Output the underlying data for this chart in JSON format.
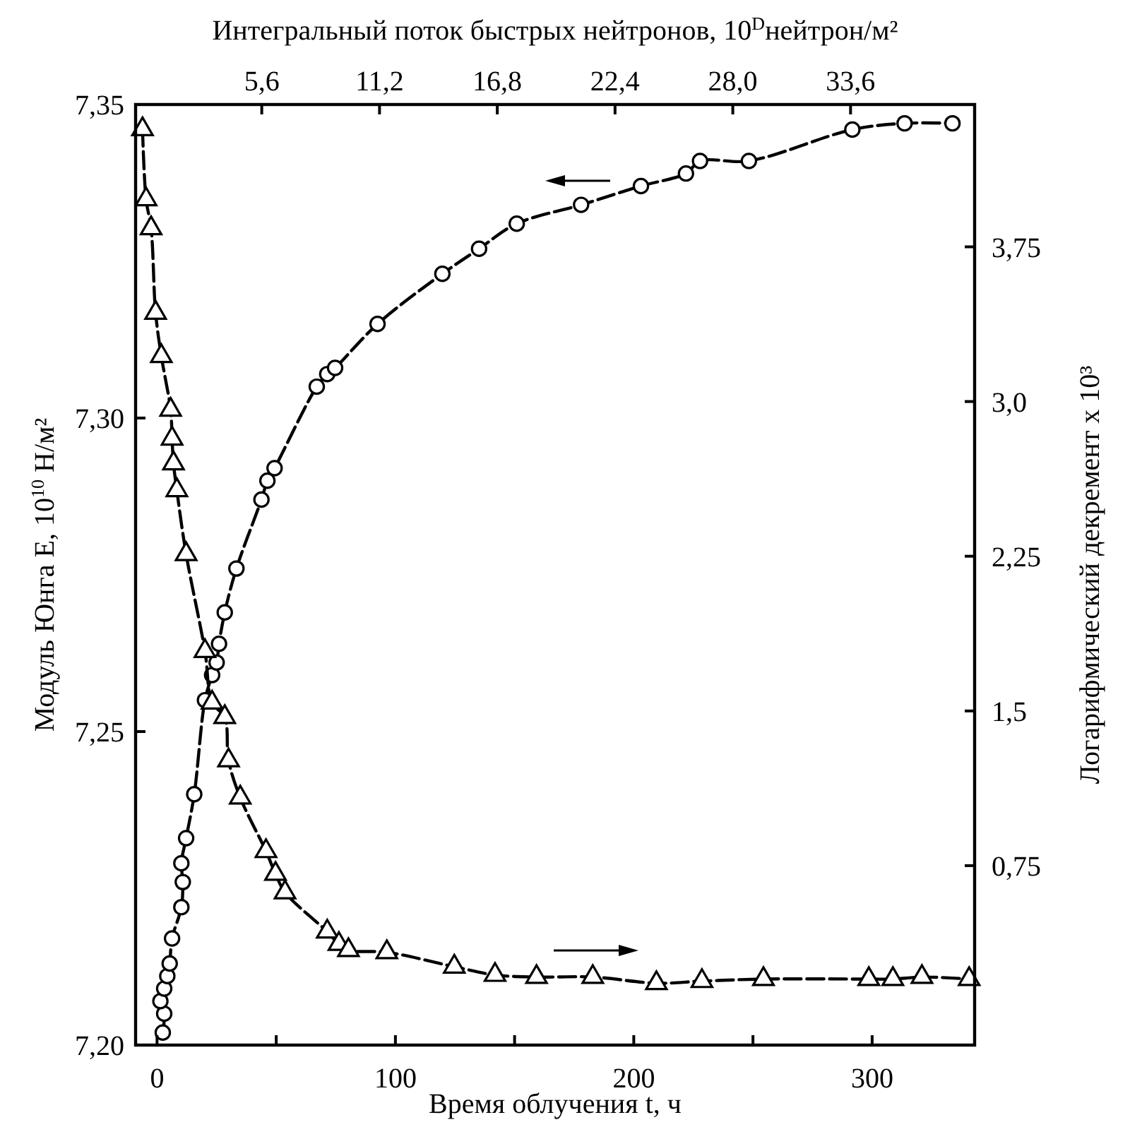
{
  "chart_data": {
    "type": "line",
    "xlabel": "Время облучения t, ч",
    "ylabel": "Модуль Юнга E, 10$^{10}$ Н/м²",
    "y2label": "Логарифмический декремент x 10³",
    "x2label": "Интегральный поток быстрых нейтронов, 10$^{D}$нейтрон/м²",
    "xlim": [
      -9,
      343
    ],
    "xticks": [
      0,
      {
        "value": 50,
        "label": null
      },
      100,
      {
        "value": 150,
        "label": null
      },
      200,
      {
        "value": 250,
        "label": null
      },
      300
    ],
    "ylim": [
      7.2,
      7.35
    ],
    "yticks": [
      {
        "value": 7.2,
        "label": "7,20"
      },
      {
        "value": 7.25,
        "label": "7,25"
      },
      {
        "value": 7.3,
        "label": "7,30"
      },
      {
        "value": 7.35,
        "label": "7,35"
      }
    ],
    "y2lim": [
      -0.12,
      4.44
    ],
    "y2ticks": [
      {
        "value": 0.75,
        "label": "0,75"
      },
      {
        "value": 1.5,
        "label": "1,5"
      },
      {
        "value": 2.25,
        "label": "2,25"
      },
      {
        "value": 3,
        "label": "3,0"
      },
      {
        "value": 3.75,
        "label": "3,75"
      }
    ],
    "x2lim": [
      -0.4,
      39.5
    ],
    "x2ticks": [
      {
        "value": 5.6,
        "label": "5,6"
      },
      {
        "value": 11.2,
        "label": "11,2"
      },
      {
        "value": 16.8,
        "label": "16,8"
      },
      {
        "value": 22.4,
        "label": "22,4"
      },
      {
        "value": 28,
        "label": "28,0"
      },
      {
        "value": 33.6,
        "label": "33,6"
      }
    ],
    "line_style": "dashed",
    "series": [
      {
        "marker": "circle",
        "color": "#000000",
        "x": [
          2.4,
          3,
          1.4,
          3,
          4.3,
          5.3,
          6.3,
          10.2,
          10.8,
          10.2,
          12.2,
          15.6,
          20.1,
          23.1,
          25,
          26,
          28.4,
          33.3,
          43.8,
          46.3,
          49.3,
          67,
          71.4,
          74.7,
          92.5,
          119.7,
          135.1,
          150.9,
          177.9,
          203,
          221.9,
          227.8,
          248.3,
          291.7,
          313.6,
          333.7
        ],
        "values": [
          7.202,
          7.205,
          7.207,
          7.209,
          7.211,
          7.213,
          7.217,
          7.222,
          7.226,
          7.229,
          7.233,
          7.24,
          7.255,
          7.259,
          7.261,
          7.264,
          7.269,
          7.276,
          7.287,
          7.29,
          7.292,
          7.305,
          7.307,
          7.308,
          7.315,
          7.323,
          7.327,
          7.331,
          7.334,
          7.337,
          7.339,
          7.341,
          7.341,
          7.346,
          7.347,
          7.347
        ]
      },
      {
        "marker": "triangle",
        "color": "#000000",
        "axis": "y2",
        "x": [
          -6.1,
          -4.6,
          -2.5,
          -0.6,
          1.8,
          5.7,
          6.3,
          6.9,
          8.3,
          12.2,
          20.1,
          23.1,
          28.4,
          30,
          34.9,
          45.7,
          49.7,
          53.7,
          71.4,
          76.3,
          80.3,
          96.4,
          124.7,
          141.8,
          159.2,
          182.8,
          209.5,
          228.6,
          254.4,
          298.6,
          308.7,
          320.9,
          340.7
        ],
        "values": [
          4.32,
          3.98,
          3.84,
          3.43,
          3.22,
          2.96,
          2.82,
          2.7,
          2.57,
          2.26,
          1.79,
          1.54,
          1.47,
          1.26,
          1.08,
          0.82,
          0.71,
          0.62,
          0.43,
          0.37,
          0.34,
          0.33,
          0.26,
          0.22,
          0.21,
          0.21,
          0.18,
          0.19,
          0.2,
          0.2,
          0.2,
          0.21,
          0.2
        ]
      }
    ]
  }
}
